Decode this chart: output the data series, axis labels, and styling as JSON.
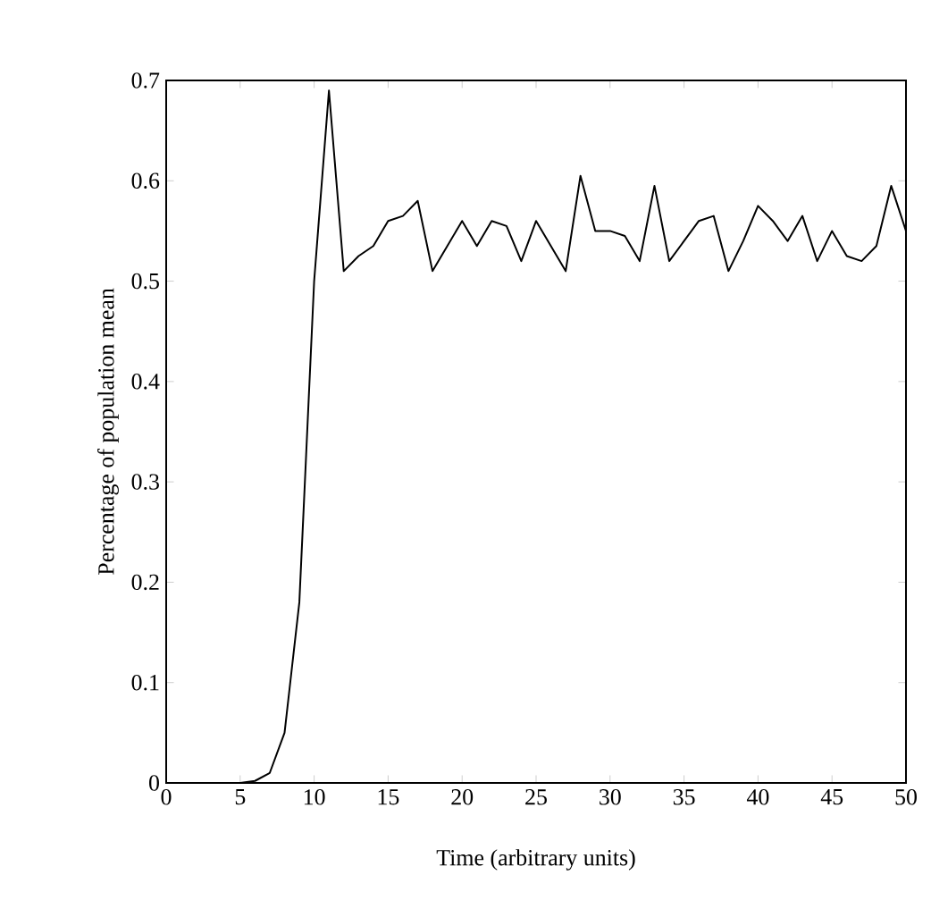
{
  "chart_data": {
    "type": "line",
    "xlabel": "Time (arbitrary units)",
    "ylabel": "Percentage of population mean",
    "x": [
      0,
      1,
      2,
      3,
      4,
      5,
      6,
      7,
      8,
      9,
      10,
      11,
      12,
      13,
      14,
      15,
      16,
      17,
      18,
      19,
      20,
      21,
      22,
      23,
      24,
      25,
      26,
      27,
      28,
      29,
      30,
      31,
      32,
      33,
      34,
      35,
      36,
      37,
      38,
      39,
      40,
      41,
      42,
      43,
      44,
      45,
      46,
      47,
      48,
      49,
      50
    ],
    "series": [
      {
        "color": "#000000",
        "values": [
          0,
          0,
          0,
          0,
          0,
          0,
          0.002,
          0.01,
          0.05,
          0.18,
          0.5,
          0.69,
          0.51,
          0.525,
          0.535,
          0.56,
          0.565,
          0.58,
          0.51,
          0.535,
          0.56,
          0.535,
          0.56,
          0.555,
          0.52,
          0.56,
          0.535,
          0.51,
          0.605,
          0.55,
          0.55,
          0.545,
          0.52,
          0.595,
          0.52,
          0.54,
          0.56,
          0.565,
          0.51,
          0.54,
          0.575,
          0.56,
          0.54,
          0.565,
          0.52,
          0.55,
          0.525,
          0.52,
          0.535,
          0.595,
          0.55
        ]
      }
    ],
    "xlim": [
      0,
      50
    ],
    "ylim": [
      0,
      0.7
    ],
    "xticks": [
      0,
      5,
      10,
      15,
      20,
      25,
      30,
      35,
      40,
      45,
      50
    ],
    "yticks": [
      0,
      0.1,
      0.2,
      0.3,
      0.4,
      0.5,
      0.6,
      0.7
    ],
    "grid": false,
    "marker": "none",
    "line_style": "solid"
  }
}
